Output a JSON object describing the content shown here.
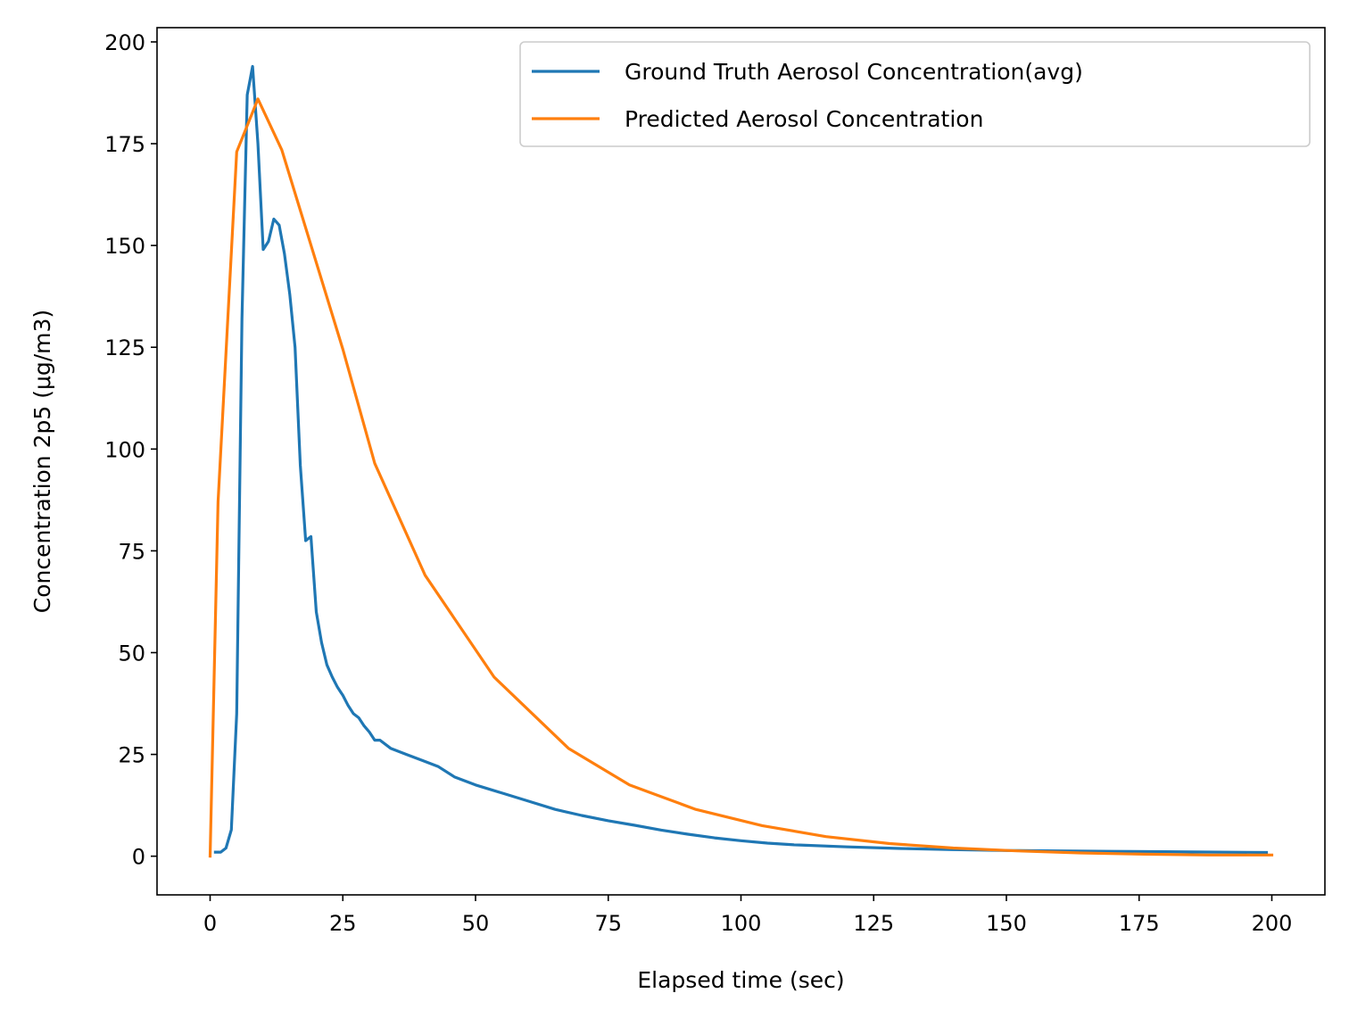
{
  "chart_data": {
    "type": "line",
    "xlabel": "Elapsed time (sec)",
    "ylabel": "Concentration 2p5 (μg/m3)",
    "xlim": [
      -10,
      210
    ],
    "ylim": [
      -9.5,
      203.5
    ],
    "xticks": [
      0,
      25,
      50,
      75,
      100,
      125,
      150,
      175,
      200
    ],
    "yticks": [
      0,
      25,
      50,
      75,
      100,
      125,
      150,
      175,
      200
    ],
    "grid": false,
    "legend_position": "top-right",
    "series": [
      {
        "name": "Ground Truth Aerosol Concentration(avg)",
        "color": "#1f77b4",
        "x": [
          1,
          2,
          3,
          4,
          5,
          6,
          7,
          8,
          9,
          10,
          11,
          12,
          13,
          14,
          15,
          16,
          17,
          18,
          19,
          20,
          21,
          22,
          23,
          24,
          25,
          26,
          27,
          28,
          29,
          30,
          31,
          32,
          34,
          37,
          40,
          43,
          46,
          50,
          55,
          60,
          65,
          70,
          75,
          80,
          85,
          90,
          95,
          100,
          105,
          110,
          120,
          130,
          140,
          150,
          160,
          170,
          180,
          190,
          199
        ],
        "y": [
          1,
          1,
          2,
          6.5,
          35,
          132,
          187,
          194,
          175,
          149,
          151,
          156.5,
          155,
          148,
          138,
          125,
          96,
          77.5,
          78.5,
          60,
          52.5,
          47,
          44,
          41.5,
          39.5,
          37,
          35,
          34,
          32,
          30.5,
          28.5,
          28.5,
          26.5,
          25,
          23.5,
          22,
          19.5,
          17.5,
          15.5,
          13.5,
          11.5,
          10,
          8.7,
          7.6,
          6.4,
          5.4,
          4.5,
          3.8,
          3.2,
          2.8,
          2.3,
          1.9,
          1.6,
          1.4,
          1.3,
          1.2,
          1.1,
          1.0,
          0.9
        ]
      },
      {
        "name": "Predicted Aerosol Concentration",
        "color": "#ff7f0e",
        "x": [
          0,
          1.5,
          5,
          9,
          13.5,
          25,
          31,
          40.5,
          53.5,
          67.5,
          79,
          91.5,
          104,
          116,
          128,
          140,
          152,
          164,
          176,
          188,
          200
        ],
        "y": [
          0,
          87,
          173,
          186,
          173.5,
          124.5,
          96.5,
          69,
          44,
          26.5,
          17.5,
          11.5,
          7.5,
          4.8,
          3.1,
          2.0,
          1.3,
          0.8,
          0.5,
          0.3,
          0.3
        ]
      }
    ]
  }
}
